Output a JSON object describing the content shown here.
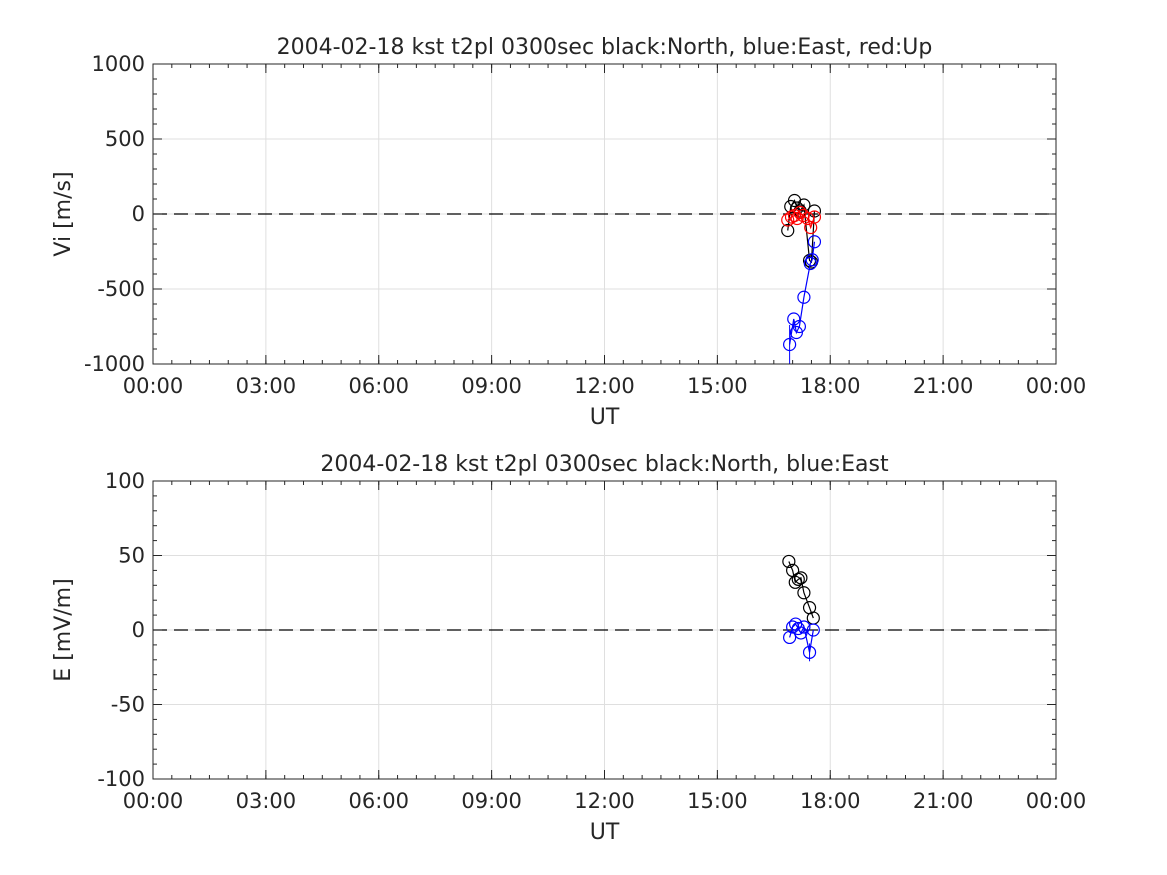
{
  "chart_data": [
    {
      "type": "scatter",
      "title": "2004-02-18 kst t2pl 0300sec black:North, blue:East, red:Up",
      "xlabel": "UT",
      "ylabel": "Vi [m/s]",
      "xlim": [
        0,
        24
      ],
      "ylim": [
        -1000,
        1000
      ],
      "xticks": [
        0,
        3,
        6,
        9,
        12,
        15,
        18,
        21,
        24
      ],
      "xticklabels": [
        "00:00",
        "03:00",
        "06:00",
        "09:00",
        "12:00",
        "15:00",
        "18:00",
        "21:00",
        "00:00"
      ],
      "yticks": [
        -1000,
        -500,
        0,
        500,
        1000
      ],
      "yticklabels": [
        "-1000",
        "-500",
        "0",
        "500",
        "1000"
      ],
      "grid": true,
      "zero_line": "dashed",
      "series": [
        {
          "color": "#000000",
          "x": [
            16.87,
            16.95,
            17.05,
            17.12,
            17.2,
            17.3,
            17.45,
            17.5,
            17.58
          ],
          "y": [
            -110,
            50,
            90,
            40,
            20,
            60,
            -310,
            -320,
            20
          ],
          "err": [
            0,
            0,
            0,
            0,
            0,
            0,
            0,
            0,
            0
          ]
        },
        {
          "color": "#0000ff",
          "x": [
            16.92,
            17.03,
            17.1,
            17.18,
            17.3,
            17.47,
            17.52,
            17.58
          ],
          "y": [
            -870,
            -700,
            -790,
            -750,
            -555,
            -330,
            -305,
            -185
          ],
          "err": [
            130,
            0,
            0,
            0,
            0,
            0,
            0,
            0
          ]
        },
        {
          "color": "#ff0000",
          "x": [
            16.87,
            16.97,
            17.05,
            17.12,
            17.2,
            17.28,
            17.4,
            17.48,
            17.58
          ],
          "y": [
            -40,
            -20,
            -10,
            -30,
            10,
            -10,
            -30,
            -90,
            -20
          ],
          "err": [
            0,
            0,
            0,
            0,
            0,
            0,
            0,
            0,
            0
          ]
        }
      ]
    },
    {
      "type": "scatter",
      "title": "2004-02-18 kst t2pl 0300sec black:North, blue:East",
      "xlabel": "UT",
      "ylabel": "E [mV/m]",
      "xlim": [
        0,
        24
      ],
      "ylim": [
        -100,
        100
      ],
      "xticks": [
        0,
        3,
        6,
        9,
        12,
        15,
        18,
        21,
        24
      ],
      "xticklabels": [
        "00:00",
        "03:00",
        "06:00",
        "09:00",
        "12:00",
        "15:00",
        "18:00",
        "21:00",
        "00:00"
      ],
      "yticks": [
        -100,
        -50,
        0,
        50,
        100
      ],
      "yticklabels": [
        "-100",
        "-50",
        "0",
        "50",
        "100"
      ],
      "grid": true,
      "zero_line": "dashed",
      "series": [
        {
          "color": "#000000",
          "x": [
            16.9,
            17.0,
            17.07,
            17.15,
            17.22,
            17.3,
            17.45,
            17.55
          ],
          "y": [
            46,
            40,
            32,
            34,
            35,
            25,
            15,
            8
          ],
          "err": [
            0,
            0,
            0,
            0,
            0,
            0,
            0,
            0
          ]
        },
        {
          "color": "#0000ff",
          "x": [
            16.92,
            17.0,
            17.08,
            17.15,
            17.22,
            17.3,
            17.45,
            17.55
          ],
          "y": [
            -5,
            2,
            4,
            1,
            -2,
            2,
            -15,
            0
          ],
          "err": [
            0,
            0,
            0,
            0,
            0,
            0,
            6,
            0
          ]
        }
      ]
    }
  ]
}
